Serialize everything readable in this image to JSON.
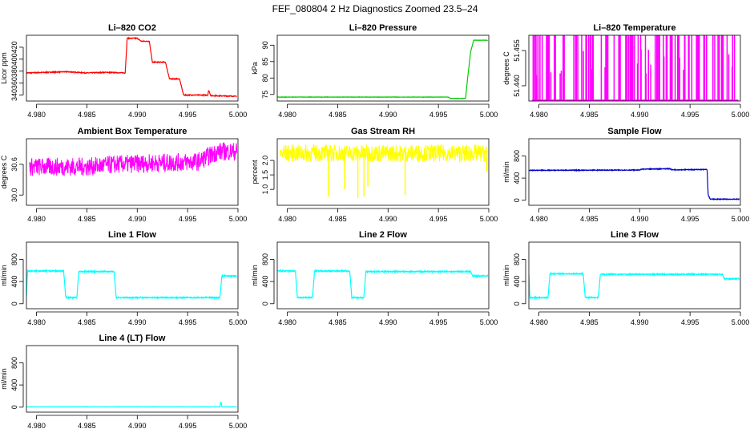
{
  "figure": {
    "main_title": "FEF_080804  2 Hz Diagnostics Zoomed 23.5–24"
  },
  "chart_data": [
    {
      "type": "line",
      "title": "Li–820 CO2",
      "ylabel": "Licor ppm",
      "color": "#ff0000",
      "xlim": [
        4.979,
        5.0
      ],
      "ylim": [
        330,
        440
      ],
      "xticks": [
        "4.980",
        "4.985",
        "4.990",
        "4.995",
        "5.000"
      ],
      "yticks": [
        "340",
        "360",
        "380",
        "400",
        "420"
      ],
      "series": [
        {
          "name": "CO2",
          "x": [
            4.979,
            4.983,
            4.985,
            4.987,
            4.9888,
            4.989,
            4.99,
            4.9904,
            4.9912,
            4.9915,
            4.9928,
            4.9932,
            4.9942,
            4.9946,
            4.997,
            4.9971,
            4.9973,
            4.9999
          ],
          "y": [
            377,
            379,
            377,
            378,
            377,
            435,
            435,
            430,
            430,
            395,
            395,
            367,
            367,
            340,
            340,
            348,
            339,
            338
          ]
        }
      ],
      "noise": 0.7
    },
    {
      "type": "line",
      "title": "Li–820 Pressure",
      "ylabel": "kPa",
      "color": "#00cc00",
      "xlim": [
        4.979,
        5.0
      ],
      "ylim": [
        73,
        93
      ],
      "xticks": [
        "4.980",
        "4.985",
        "4.990",
        "4.995",
        "5.000"
      ],
      "yticks": [
        "75",
        "80",
        "85",
        "90"
      ],
      "series": [
        {
          "name": "Pressure",
          "x": [
            4.979,
            4.996,
            4.9962,
            4.9977,
            4.9979,
            4.9982,
            4.9985,
            4.9999
          ],
          "y": [
            74.2,
            74.2,
            73.8,
            73.8,
            80,
            88,
            91.5,
            91.5
          ]
        }
      ],
      "noise": 0.05
    },
    {
      "type": "spikes",
      "title": "Li–820 Temperature",
      "ylabel": "degrees C",
      "color": "#ff00ff",
      "xlim": [
        4.979,
        5.0
      ],
      "ylim": [
        51.4335,
        51.4615
      ],
      "xticks": [
        "4.980",
        "4.985",
        "4.990",
        "4.995",
        "5.000"
      ],
      "yticks": [
        "51.440",
        "51.455"
      ],
      "base": 51.4335,
      "high": 51.4615,
      "count": 120
    },
    {
      "type": "band",
      "title": "Ambient Box Temperature",
      "ylabel": "degrees C",
      "color": "#ff00ff",
      "xlim": [
        4.979,
        5.0
      ],
      "ylim": [
        29.8,
        31.1
      ],
      "xticks": [
        "4.980",
        "4.985",
        "4.990",
        "4.995",
        "5.000"
      ],
      "yticks": [
        "30.0",
        "30.6"
      ],
      "center": [
        [
          4.979,
          30.55
        ],
        [
          4.985,
          30.55
        ],
        [
          4.988,
          30.6
        ],
        [
          4.996,
          30.65
        ],
        [
          4.998,
          30.85
        ],
        [
          4.9999,
          30.85
        ]
      ],
      "spread": 0.18
    },
    {
      "type": "band",
      "title": "Gas Stream RH",
      "ylabel": "percent",
      "color": "#ffff00",
      "xlim": [
        4.979,
        5.0
      ],
      "ylim": [
        0.45,
        2.75
      ],
      "xticks": [
        "4.980",
        "4.985",
        "4.990",
        "4.995",
        "5.000"
      ],
      "yticks": [
        "1.0",
        "1.5",
        "2.0"
      ],
      "center": [
        [
          4.979,
          2.25
        ],
        [
          4.9999,
          2.25
        ]
      ],
      "spread": 0.3,
      "dips": [
        [
          4.9841,
          0.75
        ],
        [
          4.9857,
          1.0
        ],
        [
          4.987,
          0.7
        ],
        [
          4.9876,
          0.75
        ],
        [
          4.988,
          1.1
        ],
        [
          4.9917,
          0.8
        ],
        [
          4.9998,
          1.6
        ]
      ]
    },
    {
      "type": "line",
      "title": "Sample Flow",
      "ylabel": "ml/min",
      "color": "#0000cc",
      "xlim": [
        4.979,
        5.0
      ],
      "ylim": [
        -90,
        1110
      ],
      "xticks": [
        "4.980",
        "4.985",
        "4.990",
        "4.995",
        "5.000"
      ],
      "yticks": [
        "0",
        "400",
        "800"
      ],
      "yticks_values": [
        0,
        400,
        800
      ],
      "series": [
        {
          "name": "Sample",
          "x": [
            4.979,
            4.99,
            4.9902,
            4.993,
            4.9932,
            4.9967,
            4.9968,
            4.997,
            4.9999
          ],
          "y": [
            540,
            545,
            560,
            570,
            550,
            555,
            100,
            20,
            20
          ]
        }
      ],
      "noise": 6
    },
    {
      "type": "line",
      "title": "Line 1 Flow",
      "ylabel": "ml/min",
      "color": "#00ffff",
      "xlim": [
        4.979,
        5.0
      ],
      "ylim": [
        -90,
        1110
      ],
      "xticks": [
        "4.980",
        "4.985",
        "4.990",
        "4.995",
        "5.000"
      ],
      "yticks": [
        "0",
        "400",
        "800"
      ],
      "yticks_values": [
        0,
        400,
        800
      ],
      "series": [
        {
          "name": "Line 1",
          "x": [
            4.979,
            4.9791,
            4.9827,
            4.9829,
            4.984,
            4.9842,
            4.9877,
            4.9879,
            4.9982,
            4.9984,
            4.9999
          ],
          "y": [
            120,
            590,
            590,
            110,
            110,
            580,
            580,
            110,
            110,
            500,
            500
          ]
        }
      ],
      "noise": 10
    },
    {
      "type": "line",
      "title": "Line 2 Flow",
      "ylabel": "ml/min",
      "color": "#00ffff",
      "xlim": [
        4.979,
        5.0
      ],
      "ylim": [
        -90,
        1110
      ],
      "xticks": [
        "4.980",
        "4.985",
        "4.990",
        "4.995",
        "5.000"
      ],
      "yticks": [
        "0",
        "400",
        "800"
      ],
      "yticks_values": [
        0,
        400,
        800
      ],
      "series": [
        {
          "name": "Line 2",
          "x": [
            4.979,
            4.9808,
            4.981,
            4.9825,
            4.9827,
            4.9862,
            4.9864,
            4.9876,
            4.9878,
            4.9982,
            4.9984,
            4.9999
          ],
          "y": [
            590,
            590,
            110,
            110,
            590,
            590,
            110,
            110,
            580,
            580,
            500,
            500
          ]
        }
      ],
      "noise": 10
    },
    {
      "type": "line",
      "title": "Line 3 Flow",
      "ylabel": "ml/min",
      "color": "#00ffff",
      "xlim": [
        4.979,
        5.0
      ],
      "ylim": [
        -90,
        1110
      ],
      "xticks": [
        "4.980",
        "4.985",
        "4.990",
        "4.995",
        "5.000"
      ],
      "yticks": [
        "0",
        "400",
        "800"
      ],
      "yticks_values": [
        0,
        400,
        800
      ],
      "series": [
        {
          "name": "Line 3",
          "x": [
            4.979,
            4.9791,
            4.9809,
            4.9811,
            4.9844,
            4.9846,
            4.9859,
            4.9861,
            4.9982,
            4.9984,
            4.9999
          ],
          "y": [
            540,
            110,
            110,
            540,
            540,
            110,
            110,
            530,
            530,
            450,
            450
          ]
        }
      ],
      "noise": 10
    },
    {
      "type": "line",
      "title": "Line 4 (LT) Flow",
      "ylabel": "ml/min",
      "color": "#00ffff",
      "xlim": [
        4.979,
        5.0
      ],
      "ylim": [
        -90,
        1110
      ],
      "xticks": [
        "4.980",
        "4.985",
        "4.990",
        "4.995",
        "5.000"
      ],
      "yticks": [
        "0",
        "400",
        "800"
      ],
      "yticks_values": [
        0,
        400,
        800
      ],
      "series": [
        {
          "name": "Line 4",
          "x": [
            4.979,
            4.9982,
            4.9983,
            4.9984,
            4.9999
          ],
          "y": [
            5,
            5,
            100,
            5,
            5
          ]
        }
      ],
      "noise": 2
    }
  ]
}
